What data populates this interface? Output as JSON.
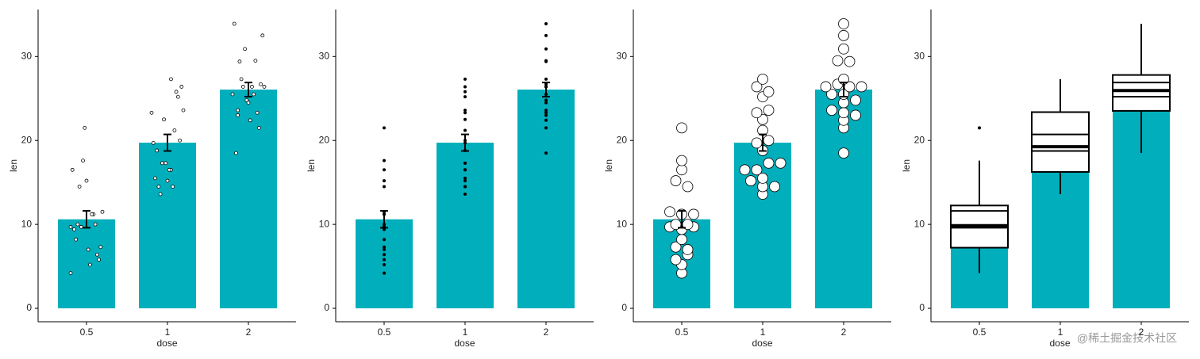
{
  "chart_data": [
    {
      "type": "bar_jitter",
      "x_label": "dose",
      "y_label": "len",
      "color": "#00AFBB",
      "categories": [
        "0.5",
        "1",
        "2"
      ],
      "values": [
        10.605,
        19.735,
        26.06
      ],
      "errors": [
        1.006,
        0.987,
        0.844
      ],
      "points": [
        [
          4.2,
          11.5,
          7.3,
          5.8,
          6.4,
          10,
          11.2,
          11.2,
          5.2,
          7,
          15.2,
          21.5,
          17.6,
          9.7,
          14.5,
          10,
          8.2,
          9.4,
          16.5,
          9.7
        ],
        [
          16.5,
          16.5,
          15.2,
          17.3,
          22.5,
          17.3,
          13.6,
          14.5,
          18.8,
          15.5,
          19.7,
          23.3,
          23.6,
          26.4,
          20,
          25.2,
          25.8,
          21.2,
          14.5,
          27.3
        ],
        [
          23.6,
          18.5,
          33.9,
          25.5,
          26.4,
          32.5,
          26.7,
          21.5,
          23.3,
          29.5,
          25.5,
          26.4,
          22.4,
          24.5,
          24.8,
          30.9,
          26.4,
          27.3,
          29.4,
          23
        ]
      ],
      "ylim": [
        -1.6,
        35.6
      ],
      "yticks": [
        0,
        10,
        20,
        30
      ]
    },
    {
      "type": "bar_strip",
      "x_label": "dose",
      "y_label": "len",
      "color": "#00AFBB",
      "categories": [
        "0.5",
        "1",
        "2"
      ],
      "values": [
        10.605,
        19.735,
        26.06
      ],
      "errors": [
        1.006,
        0.987,
        0.844
      ],
      "points": [
        [
          4.2,
          11.5,
          7.3,
          5.8,
          6.4,
          10,
          11.2,
          11.2,
          5.2,
          7,
          15.2,
          21.5,
          17.6,
          9.7,
          14.5,
          10,
          8.2,
          9.4,
          16.5,
          9.7
        ],
        [
          16.5,
          16.5,
          15.2,
          17.3,
          22.5,
          17.3,
          13.6,
          14.5,
          18.8,
          15.5,
          19.7,
          23.3,
          23.6,
          26.4,
          20,
          25.2,
          25.8,
          21.2,
          14.5,
          27.3
        ],
        [
          23.6,
          18.5,
          33.9,
          25.5,
          26.4,
          32.5,
          26.7,
          21.5,
          23.3,
          29.5,
          25.5,
          26.4,
          22.4,
          24.5,
          24.8,
          30.9,
          26.4,
          27.3,
          29.4,
          23
        ]
      ],
      "ylim": [
        -1.6,
        35.6
      ],
      "yticks": [
        0,
        10,
        20,
        30
      ]
    },
    {
      "type": "bar_dotplot",
      "x_label": "dose",
      "y_label": "len",
      "color": "#00AFBB",
      "categories": [
        "0.5",
        "1",
        "2"
      ],
      "values": [
        10.605,
        19.735,
        26.06
      ],
      "errors": [
        1.006,
        0.987,
        0.844
      ],
      "points": [
        [
          4.2,
          11.5,
          7.3,
          5.8,
          6.4,
          10,
          11.2,
          11.2,
          5.2,
          7,
          15.2,
          21.5,
          17.6,
          9.7,
          14.5,
          10,
          8.2,
          9.4,
          16.5,
          9.7
        ],
        [
          16.5,
          16.5,
          15.2,
          17.3,
          22.5,
          17.3,
          13.6,
          14.5,
          18.8,
          15.5,
          19.7,
          23.3,
          23.6,
          26.4,
          20,
          25.2,
          25.8,
          21.2,
          14.5,
          27.3
        ],
        [
          23.6,
          18.5,
          33.9,
          25.5,
          26.4,
          32.5,
          26.7,
          21.5,
          23.3,
          29.5,
          25.5,
          26.4,
          22.4,
          24.5,
          24.8,
          30.9,
          26.4,
          27.3,
          29.4,
          23
        ]
      ],
      "ylim": [
        -1.6,
        35.6
      ],
      "yticks": [
        0,
        10,
        20,
        30
      ]
    },
    {
      "type": "bar_box",
      "x_label": "dose",
      "y_label": "len",
      "color": "#00AFBB",
      "categories": [
        "0.5",
        "1",
        "2"
      ],
      "values": [
        10.605,
        19.735,
        26.06
      ],
      "errors": [
        1.006,
        0.987,
        0.844
      ],
      "boxes": [
        {
          "whisker_low": 4.2,
          "q1": 7.225,
          "median": 9.85,
          "q3": 12.25,
          "whisker_high": 17.6,
          "outliers": [
            21.5
          ]
        },
        {
          "whisker_low": 13.6,
          "q1": 16.25,
          "median": 19.25,
          "q3": 23.375,
          "whisker_high": 27.3,
          "outliers": []
        },
        {
          "whisker_low": 18.5,
          "q1": 23.525,
          "median": 25.95,
          "q3": 27.8,
          "whisker_high": 33.9,
          "outliers": []
        }
      ],
      "ylim": [
        -1.6,
        35.6
      ],
      "yticks": [
        0,
        10,
        20,
        30
      ]
    }
  ],
  "watermark": "@稀土掘金技术社区"
}
